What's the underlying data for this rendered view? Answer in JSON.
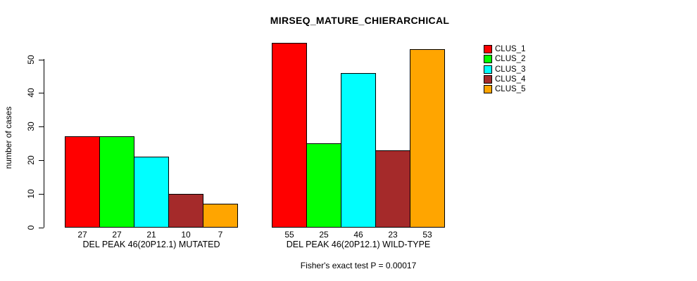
{
  "chart_data": {
    "type": "bar",
    "title": "MIRSEQ_MATURE_CHIERARCHICAL",
    "xlabel": "",
    "ylabel": "number of cases",
    "ylim": [
      0,
      55
    ],
    "yticks": [
      0,
      10,
      20,
      30,
      40,
      50
    ],
    "grid": false,
    "legend_position": "right",
    "categories": [
      "DEL PEAK 46(20P12.1) MUTATED",
      "DEL PEAK 46(20P12.1) WILD-TYPE"
    ],
    "series": [
      {
        "name": "CLUS_1",
        "color": "#FF0000",
        "values": [
          27,
          55
        ]
      },
      {
        "name": "CLUS_2",
        "color": "#00FF00",
        "values": [
          27,
          25
        ]
      },
      {
        "name": "CLUS_3",
        "color": "#00FFFF",
        "values": [
          21,
          46
        ]
      },
      {
        "name": "CLUS_4",
        "color": "#A52A2A",
        "values": [
          10,
          23
        ]
      },
      {
        "name": "CLUS_5",
        "color": "#FFA500",
        "values": [
          7,
          53
        ]
      }
    ],
    "bar_value_labels": [
      [
        "27",
        "27",
        "21",
        "10",
        "7"
      ],
      [
        "55",
        "25",
        "46",
        "23",
        "53"
      ]
    ],
    "annotation": "Fisher's exact test P = 0.00017"
  }
}
